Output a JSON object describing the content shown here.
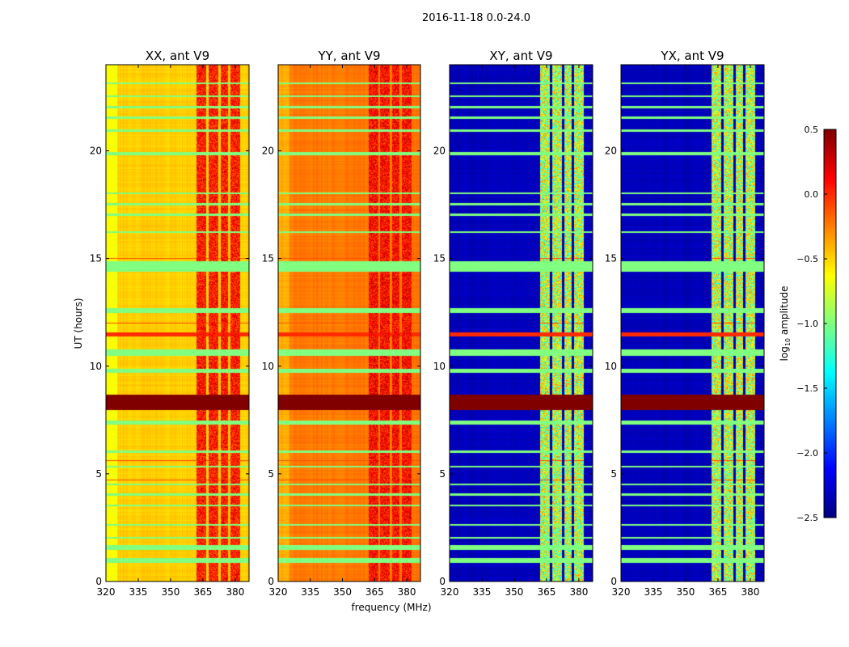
{
  "chart_data": {
    "type": "heatmap",
    "title": "2016-11-18 0.0-24.0",
    "xlabel": "frequency (MHz)",
    "ylabel": "UT (hours)",
    "xlim": [
      320,
      386.4
    ],
    "ylim": [
      0,
      24
    ],
    "x_ticks": [
      320,
      335,
      350,
      365,
      380
    ],
    "y_ticks": [
      0,
      5,
      10,
      15,
      20
    ],
    "colorbar": {
      "label_main": "log",
      "label_sub": "10",
      "label_rest": " amplitude",
      "range": [
        -2.5,
        0.5
      ],
      "ticks": [
        "0.5",
        "0.0",
        "−0.5",
        "−1.0",
        "−1.5",
        "−2.0",
        "−2.5"
      ],
      "tick_values": [
        0.5,
        0.0,
        -0.5,
        -1.0,
        -1.5,
        -2.0,
        -2.5
      ],
      "colormap": "jet"
    },
    "panels": [
      {
        "title": "XX, ant V9",
        "base_level": -0.55,
        "rfi_level": 0.05
      },
      {
        "title": "YY, ant V9",
        "base_level": -0.3,
        "rfi_level": 0.1
      },
      {
        "title": "XY, ant V9",
        "base_level": -2.4,
        "rfi_level": -0.8
      },
      {
        "title": "YX, ant V9",
        "base_level": -2.4,
        "rfi_level": -0.8
      }
    ],
    "rfi_channels_mhz": [
      [
        362,
        366.5
      ],
      [
        367.5,
        372
      ],
      [
        373,
        376.5
      ],
      [
        377.5,
        382
      ]
    ],
    "flagged_hours": [
      [
        0.9,
        1.1
      ],
      [
        1.5,
        1.7
      ],
      [
        2.0,
        2.1
      ],
      [
        2.6,
        2.7
      ],
      [
        3.5,
        3.6
      ],
      [
        4.0,
        4.1
      ],
      [
        4.5,
        4.55
      ],
      [
        5.3,
        5.4
      ],
      [
        6.0,
        6.1
      ],
      [
        7.3,
        7.5
      ],
      [
        9.7,
        9.9
      ],
      [
        10.5,
        10.8
      ],
      [
        12.5,
        12.7
      ],
      [
        14.4,
        14.9
      ],
      [
        16.2,
        16.3
      ],
      [
        17.0,
        17.1
      ],
      [
        17.5,
        17.6
      ],
      [
        18.0,
        18.1
      ],
      [
        19.8,
        19.95
      ],
      [
        20.9,
        21.0
      ],
      [
        21.5,
        21.6
      ],
      [
        22.0,
        22.1
      ],
      [
        22.5,
        22.6
      ],
      [
        23.1,
        23.2
      ]
    ],
    "flag_level": -1.0,
    "bright_hours": [
      [
        8.0,
        8.7
      ],
      [
        11.4,
        11.6
      ],
      [
        4.7,
        4.75
      ],
      [
        5.6,
        5.65
      ],
      [
        12.0,
        12.05
      ],
      [
        15.0,
        15.05
      ]
    ],
    "bright_levels": [
      0.5,
      0.0,
      -0.1,
      -0.1,
      -0.1,
      -0.1
    ]
  }
}
